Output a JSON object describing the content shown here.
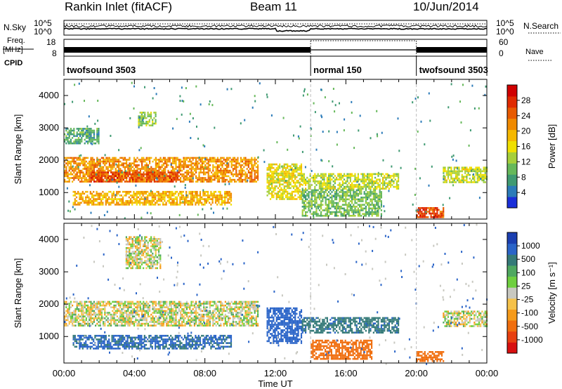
{
  "header": {
    "title": "Rankin Inlet (fitACF)",
    "beam": "Beam 11",
    "date": "10/Jun/2014"
  },
  "side_labels": {
    "nsky": "N.Sky",
    "freq": "Freq.",
    "freq_unit": "[MHz]",
    "cpid": "CPID",
    "nsearch": "N.Search",
    "nave": "Nave"
  },
  "noise_panel": {
    "left_ticks": [
      "10^5",
      "10^0"
    ],
    "right_ticks": [
      "10^5",
      "10^0"
    ]
  },
  "freq_panel": {
    "left_ticks": [
      "18",
      "8"
    ],
    "right_ticks": [
      "60",
      "0"
    ]
  },
  "cpid_segments": [
    {
      "label": "twofsound 3503",
      "start_hour": 0,
      "end_hour": 14
    },
    {
      "label": "normal 150",
      "start_hour": 14,
      "end_hour": 20
    },
    {
      "label": "twofsound 3503",
      "start_hour": 20,
      "end_hour": 24
    }
  ],
  "x_axis": {
    "label": "Time UT",
    "range_hours": [
      0,
      24
    ],
    "ticks": [
      "00:00",
      "04:00",
      "08:00",
      "12:00",
      "16:00",
      "20:00",
      "00:00"
    ]
  },
  "y_axis": {
    "label": "Slant Range [km]",
    "range_km": [
      180,
      4500
    ],
    "ticks": [
      "1000",
      "2000",
      "3000",
      "4000"
    ]
  },
  "power_colorbar": {
    "label": "Power [dB]",
    "range": [
      0,
      32
    ],
    "ticks": [
      "4",
      "8",
      "12",
      "16",
      "20",
      "24",
      "28"
    ],
    "colors": [
      "#1a2fd9",
      "#2b7bb9",
      "#3f9a72",
      "#66b85a",
      "#a6cf3a",
      "#f0e000",
      "#f5b800",
      "#f08a00",
      "#e85a00",
      "#e02a00",
      "#d00000"
    ]
  },
  "velocity_colorbar": {
    "label": "Velocity [m s⁻¹]",
    "ticks": [
      "1000",
      "500",
      "100",
      "25",
      "-25",
      "-100",
      "-500",
      "-1000"
    ],
    "colors": [
      "#1b3fb0",
      "#2a64c8",
      "#357a78",
      "#4fa860",
      "#6fcf3f",
      "#c8c8c0",
      "#f6c24a",
      "#f59a1a",
      "#f06e0e",
      "#e84010",
      "#d81010"
    ]
  },
  "chart_data": {
    "type": "heatmap",
    "title": "Rankin Inlet (fitACF)",
    "xlabel": "Time UT",
    "ylabel": "Slant Range [km]",
    "xlim": [
      0,
      24
    ],
    "ylim": [
      180,
      4500
    ],
    "panels": [
      {
        "name": "Power",
        "colorbar_label": "Power [dB]",
        "echo_regions": [
          {
            "t0": 0.0,
            "t1": 11.0,
            "r0": 1350,
            "r1": 2100,
            "value": 22
          },
          {
            "t0": 1.5,
            "t1": 6.5,
            "r0": 1350,
            "r1": 1650,
            "value": 27
          },
          {
            "t0": 0.5,
            "t1": 9.5,
            "r0": 600,
            "r1": 1050,
            "value": 20
          },
          {
            "t0": 0.0,
            "t1": 2.0,
            "r0": 2500,
            "r1": 3000,
            "value": 8
          },
          {
            "t0": 4.2,
            "t1": 5.2,
            "r0": 3100,
            "r1": 3500,
            "value": 12
          },
          {
            "t0": 11.5,
            "t1": 13.5,
            "r0": 800,
            "r1": 1900,
            "value": 16
          },
          {
            "t0": 13.5,
            "t1": 19.0,
            "r0": 1100,
            "r1": 1600,
            "value": 14
          },
          {
            "t0": 13.5,
            "t1": 18.0,
            "r0": 300,
            "r1": 1100,
            "value": 10
          },
          {
            "t0": 20.0,
            "t1": 21.5,
            "r0": 250,
            "r1": 550,
            "value": 27
          },
          {
            "t0": 21.5,
            "t1": 24.0,
            "r0": 1300,
            "r1": 1800,
            "value": 14
          }
        ]
      },
      {
        "name": "Velocity",
        "colorbar_label": "Velocity [m s⁻¹]",
        "echo_regions": [
          {
            "t0": 0.0,
            "t1": 11.0,
            "r0": 1350,
            "r1": 2100,
            "value": 0
          },
          {
            "t0": 0.5,
            "t1": 9.5,
            "r0": 600,
            "r1": 1050,
            "value": 400
          },
          {
            "t0": 11.5,
            "t1": 13.5,
            "r0": 800,
            "r1": 1900,
            "value": 600
          },
          {
            "t0": 13.5,
            "t1": 19.0,
            "r0": 1100,
            "r1": 1600,
            "value": 300
          },
          {
            "t0": 14.0,
            "t1": 17.5,
            "r0": 300,
            "r1": 900,
            "value": -300
          },
          {
            "t0": 20.0,
            "t1": 21.5,
            "r0": 250,
            "r1": 550,
            "value": -300
          },
          {
            "t0": 21.5,
            "t1": 24.0,
            "r0": 1300,
            "r1": 1800,
            "value": 0
          },
          {
            "t0": 3.5,
            "t1": 5.5,
            "r0": 3100,
            "r1": 4100,
            "value": 0
          }
        ]
      }
    ]
  }
}
